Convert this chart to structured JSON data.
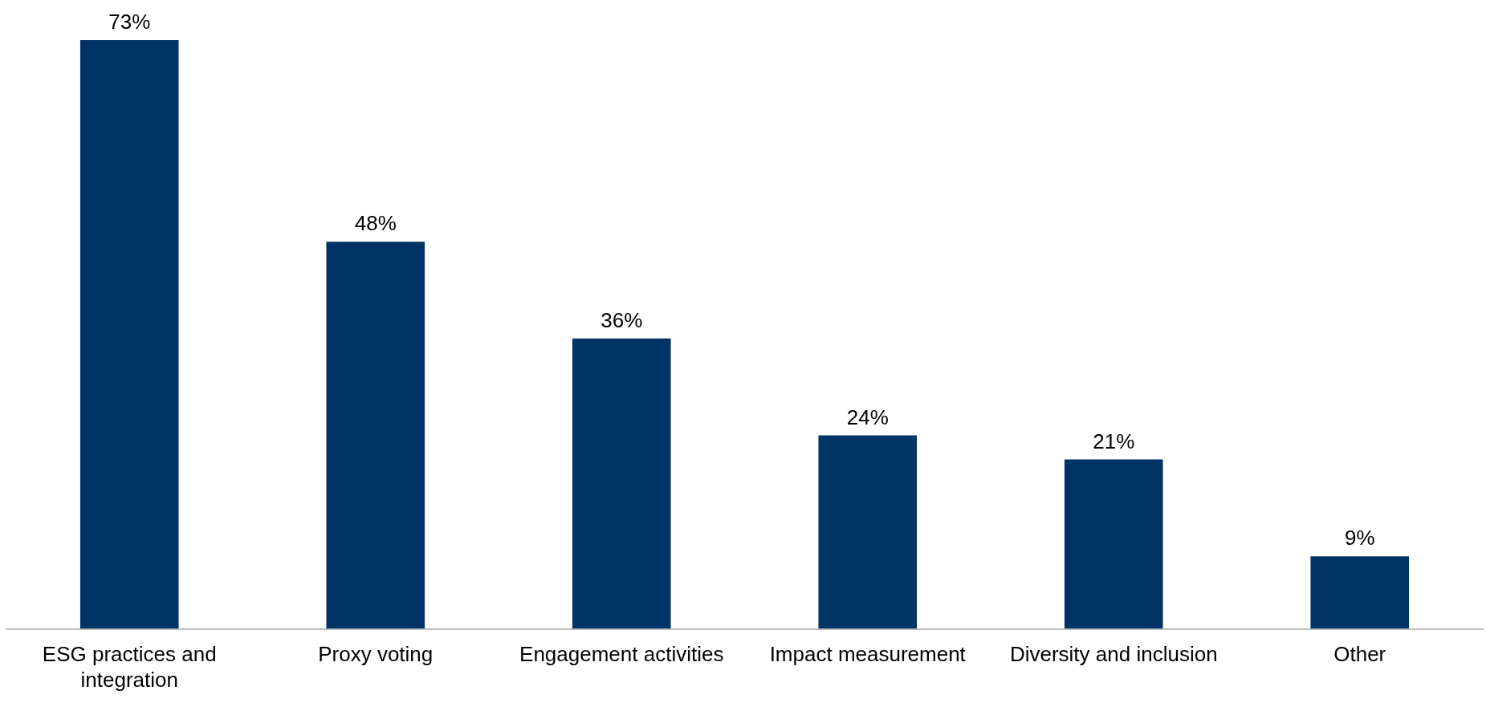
{
  "chart_data": {
    "type": "bar",
    "categories": [
      "ESG practices and integration",
      "Proxy voting",
      "Engagement activities",
      "Impact measurement",
      "Diversity and inclusion",
      "Other"
    ],
    "values": [
      73,
      48,
      36,
      24,
      21,
      9
    ],
    "color": "#003366",
    "value_labels": [
      "73%",
      "48%",
      "36%",
      "24%",
      "21%",
      "9%"
    ],
    "grid": false,
    "legend": false
  }
}
